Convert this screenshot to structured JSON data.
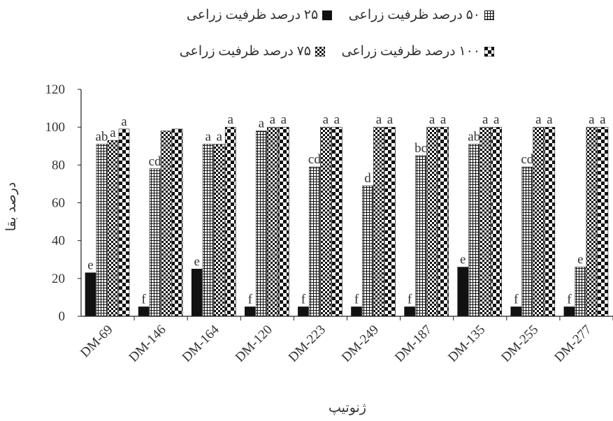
{
  "chart_data": {
    "type": "bar",
    "title": "",
    "xlabel": "ژنوتیپ",
    "ylabel": "درصد بقا",
    "ylim": [
      0,
      120
    ],
    "yticks": [
      "0",
      "20",
      "40",
      "60",
      "80",
      "100",
      "120"
    ],
    "grid": false,
    "legend_placement": "top",
    "categories": [
      "DM-69",
      "DM-146",
      "DM-164",
      "DM-120",
      "DM-223",
      "DM-249",
      "DM-187",
      "DM-135",
      "DM-255",
      "DM-277"
    ],
    "series": [
      {
        "name": "۲۵ درصد ظرفیت زراعی",
        "pattern": "solid",
        "values": [
          23,
          5,
          25,
          5,
          5,
          5,
          5,
          26,
          5,
          5
        ],
        "labels": [
          "e",
          "f",
          "e",
          "f",
          "f",
          "f",
          "f",
          "e",
          "f",
          "f"
        ]
      },
      {
        "name": "۵۰ درصد ظرفیت زراعی",
        "pattern": "grid",
        "values": [
          91,
          78,
          91,
          98,
          79,
          69,
          85,
          91,
          79,
          26
        ],
        "labels": [
          "ab",
          "cd",
          "a",
          "a",
          "cd",
          "d",
          "bc",
          "ab",
          "cd",
          "e"
        ]
      },
      {
        "name": "۷۵ درصد ظرفیت زراعی",
        "pattern": "check",
        "values": [
          93,
          98,
          91,
          100,
          100,
          100,
          100,
          100,
          100,
          100
        ],
        "labels": [
          "a",
          "",
          "a",
          "a",
          "a",
          "a",
          "a",
          "a",
          "a",
          "a"
        ]
      },
      {
        "name": "۱۰۰ درصد ظرفیت زراعی",
        "pattern": "bigcheck",
        "values": [
          99,
          99,
          100,
          100,
          100,
          100,
          100,
          100,
          100,
          100
        ],
        "labels": [
          "a",
          "",
          "a",
          "a",
          "a",
          "a",
          "a",
          "a",
          "a",
          "a"
        ]
      }
    ]
  },
  "colors": {
    "bar": "#111111",
    "axis": "#222222",
    "text": "#333333"
  }
}
